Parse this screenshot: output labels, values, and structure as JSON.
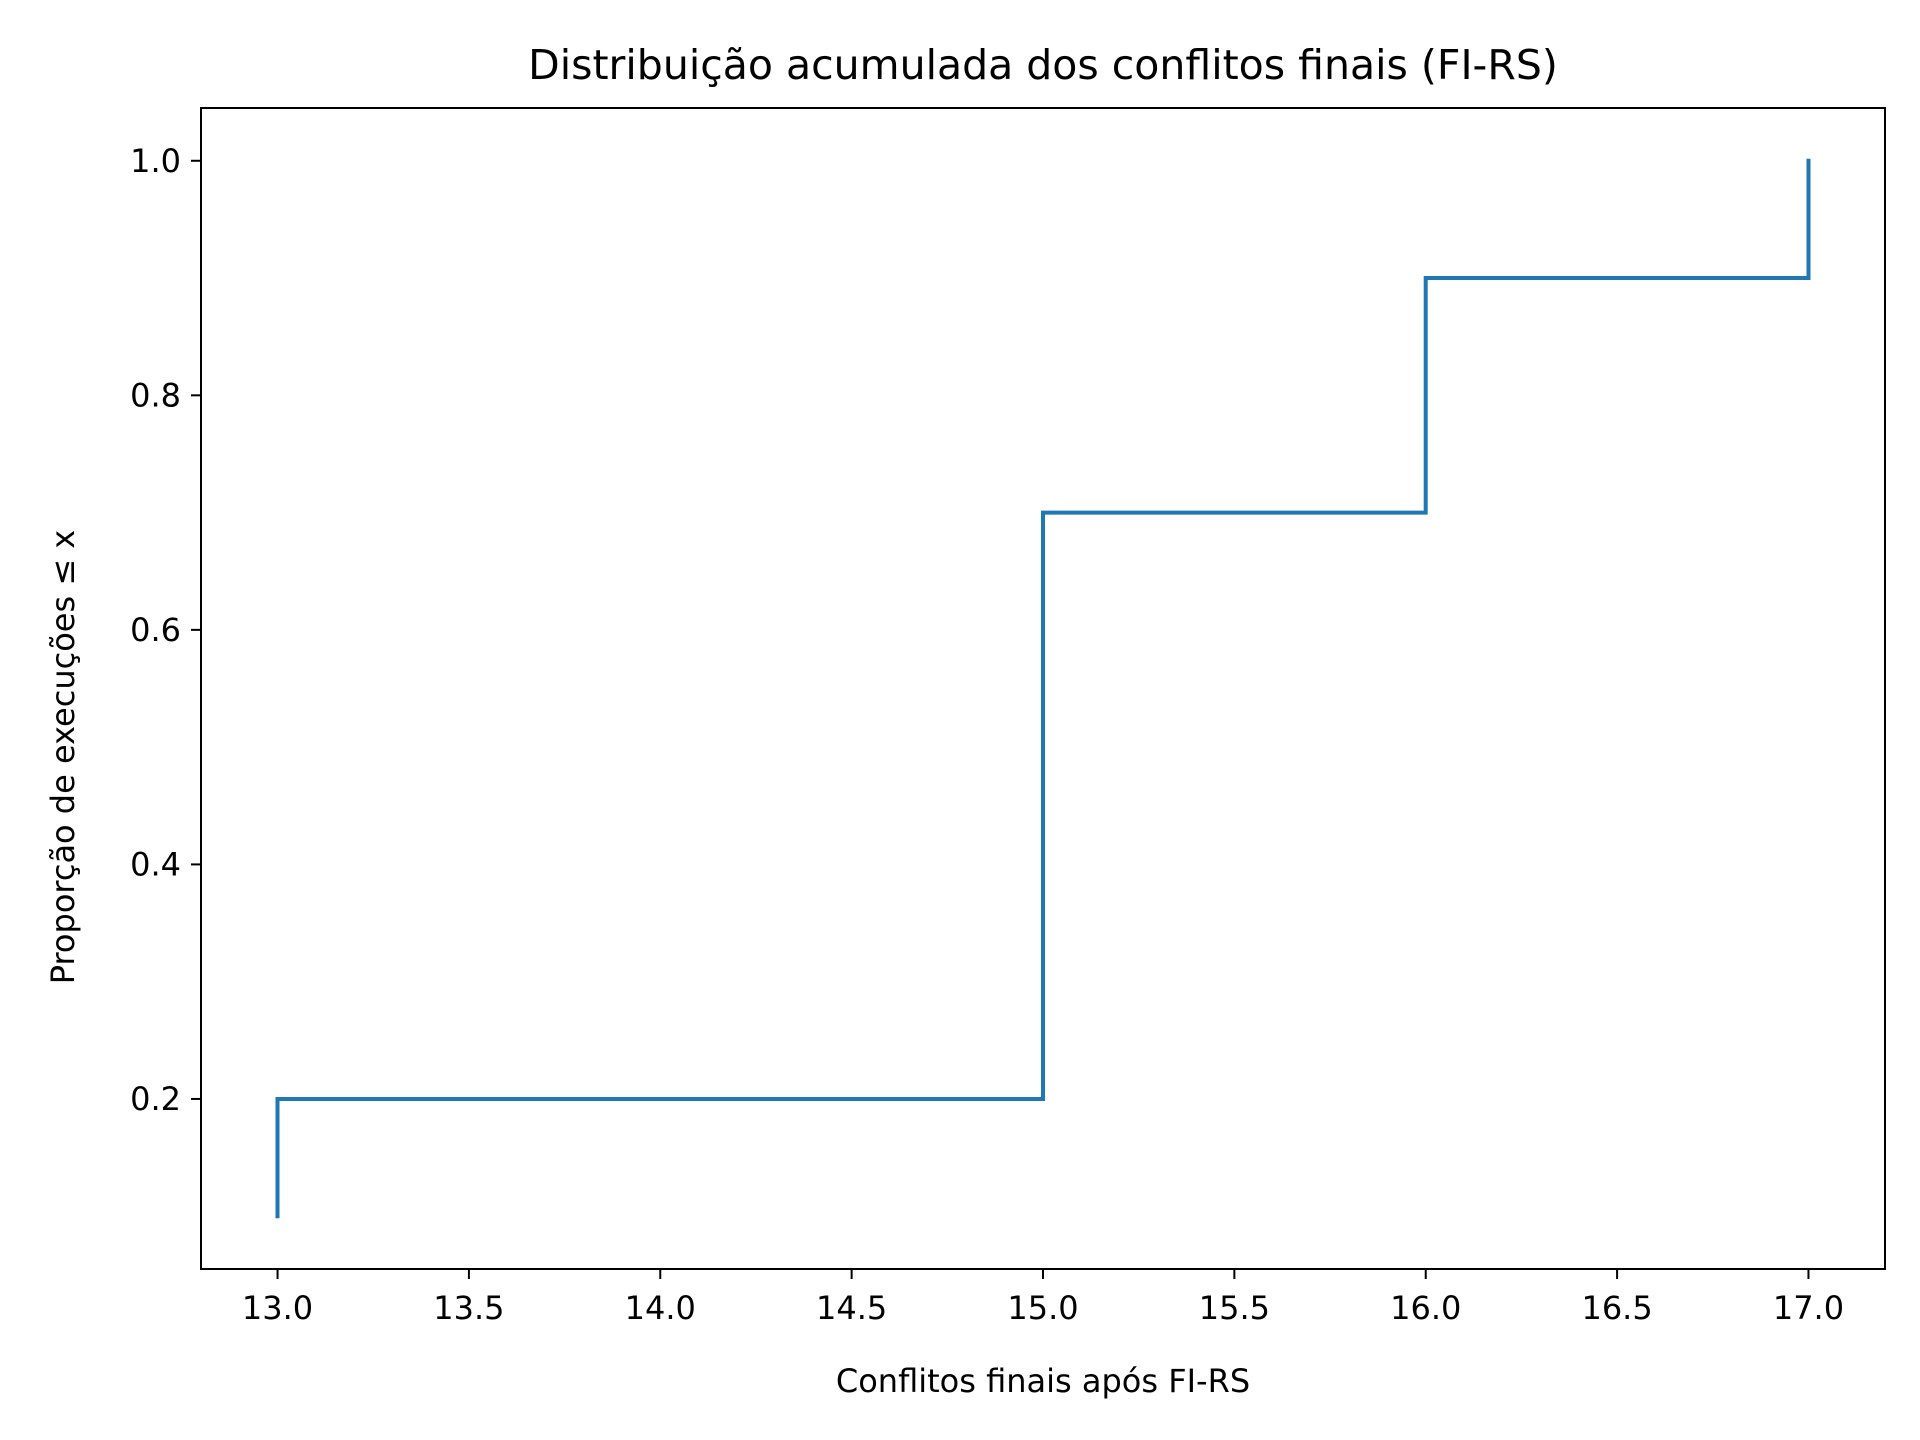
{
  "chart_data": {
    "type": "line",
    "step": "post",
    "title": "Distribuição acumulada dos conflitos finais (FI-RS)",
    "xlabel": "Conflitos finais após FI-RS",
    "ylabel": "Proporção de execuções ≤ x",
    "xlim": [
      12.8,
      17.2
    ],
    "ylim": [
      0.055,
      1.045
    ],
    "xticks": [
      13.0,
      13.5,
      14.0,
      14.5,
      15.0,
      15.5,
      16.0,
      16.5,
      17.0
    ],
    "xtick_labels": [
      "13.0",
      "13.5",
      "14.0",
      "14.5",
      "15.0",
      "15.5",
      "16.0",
      "16.5",
      "17.0"
    ],
    "yticks": [
      0.2,
      0.4,
      0.6,
      0.8,
      1.0
    ],
    "ytick_labels": [
      "0.2",
      "0.4",
      "0.6",
      "0.8",
      "1.0"
    ],
    "grid": false,
    "series": [
      {
        "color": "#1f77b4",
        "x": [
          13,
          13,
          15,
          15,
          16,
          16,
          17,
          17
        ],
        "y": [
          0.1,
          0.2,
          0.2,
          0.7,
          0.7,
          0.9,
          0.9,
          1.0
        ]
      }
    ]
  }
}
